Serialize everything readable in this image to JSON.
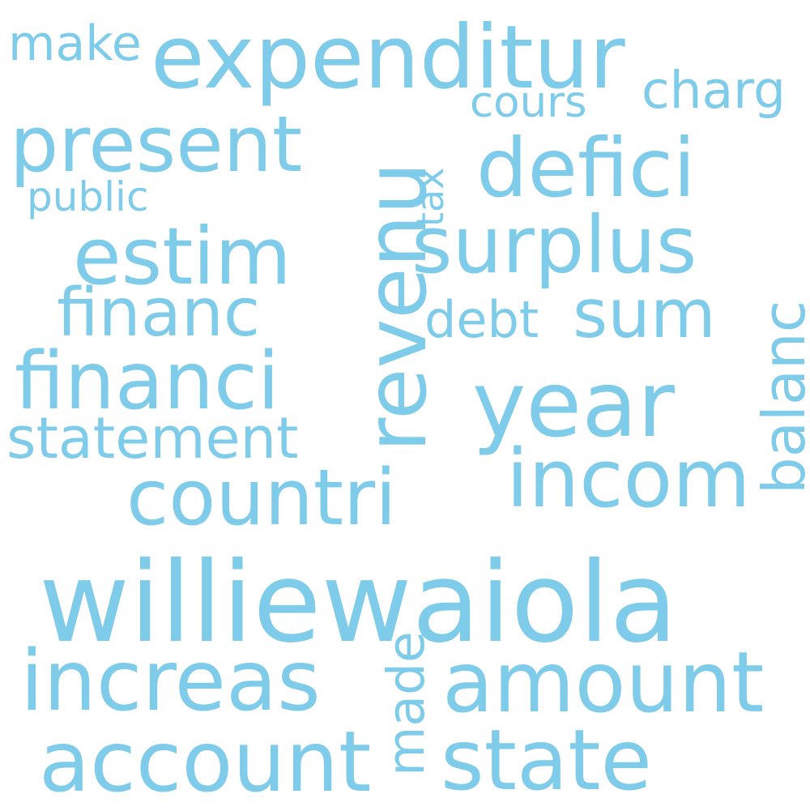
{
  "colors": {
    "background": "#ffffff",
    "word": "#7ecbea"
  },
  "words": [
    "williewaiola",
    "expenditur",
    "year",
    "revenu",
    "present",
    "defici",
    "surplus",
    "estim",
    "financi",
    "countri",
    "incom",
    "increas",
    "amount",
    "account",
    "state",
    "financ",
    "sum",
    "balanc",
    "statement",
    "charg",
    "make",
    "cours",
    "debt",
    "public",
    "tax",
    "made"
  ]
}
